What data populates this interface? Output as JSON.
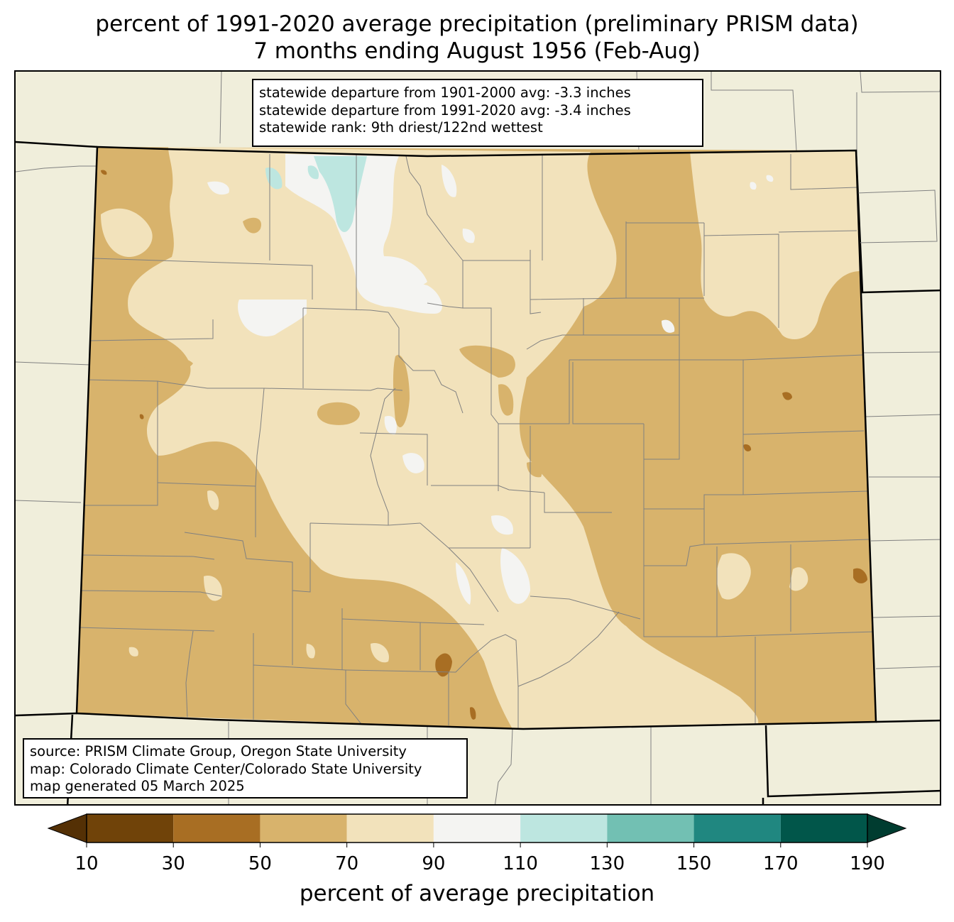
{
  "title": {
    "line1": "percent of 1991-2020 average precipitation (preliminary PRISM data)",
    "line2": "7 months ending August 1956 (Feb-Aug)"
  },
  "stats": [
    "statewide departure from 1901-2000 avg: -3.3 inches",
    "statewide departure from 1991-2020 avg: -3.4 inches",
    "statewide rank: 9th driest/122nd wettest"
  ],
  "credits": [
    "source: PRISM Climate Group, Oregon State University",
    "map: Colorado Climate Center/Colorado State University",
    "map generated 05 March 2025"
  ],
  "colorbar": {
    "label": "percent of average precipitation",
    "ticks": [
      "10",
      "30",
      "50",
      "70",
      "90",
      "110",
      "130",
      "150",
      "170",
      "190"
    ],
    "under_color": "#543005",
    "over_color": "#003c30",
    "bins": [
      {
        "range": "10-30",
        "color": "#704309"
      },
      {
        "range": "30-50",
        "color": "#a86e23"
      },
      {
        "range": "50-70",
        "color": "#d8b36c"
      },
      {
        "range": "70-90",
        "color": "#f2e2bb"
      },
      {
        "range": "90-110",
        "color": "#f4f4f2"
      },
      {
        "range": "110-130",
        "color": "#bde6e0"
      },
      {
        "range": "130-150",
        "color": "#72c0b3"
      },
      {
        "range": "150-170",
        "color": "#208780"
      },
      {
        "range": "170-190",
        "color": "#01564a"
      }
    ]
  },
  "map_colors": {
    "background": "#f0eedb",
    "state_border": "#000000",
    "county_lines": "#808080"
  }
}
